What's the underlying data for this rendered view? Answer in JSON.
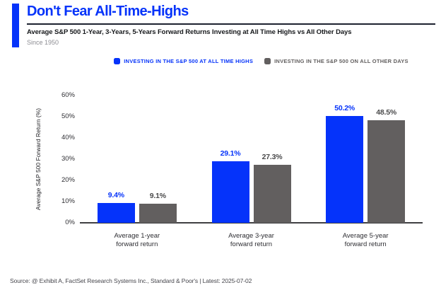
{
  "colors": {
    "accent_blue": "#0533fa",
    "bar_gray": "#625f5f",
    "gray_label": "#4a4a4b"
  },
  "header": {
    "title": "Don't Fear All-Time-Highs",
    "subtitle": "Average S&P 500 1-Year, 3-Years, 5-Years Forward Returns Investing at All Time Highs vs All Other Days",
    "since": "Since 1950"
  },
  "legend": [
    {
      "label": "INVESTING IN THE S&P 500 AT ALL TIME HIGHS",
      "color": "#0533fa"
    },
    {
      "label": "INVESTING IN THE S&P 500 ON ALL OTHER DAYS",
      "color": "#625f5f"
    }
  ],
  "chart_data": {
    "type": "bar",
    "title": "Don't Fear All-Time-Highs",
    "categories": [
      "Average 1-year\nforward return",
      "Average 3-year\nforward return",
      "Average 5-year\nforward return"
    ],
    "series": [
      {
        "name": "Investing in the S&P 500 at all time highs",
        "color": "#0533fa",
        "values": [
          9.4,
          29.1,
          50.2
        ],
        "labels": [
          "9.4%",
          "29.1%",
          "50.2%"
        ]
      },
      {
        "name": "Investing in the S&P 500 on all other days",
        "color": "#625f5f",
        "values": [
          9.1,
          27.3,
          48.5
        ],
        "labels": [
          "9.1%",
          "27.3%",
          "48.5%"
        ]
      }
    ],
    "xlabel": "",
    "ylabel": "Average S&P 500 Forward Return (%)",
    "ylim": [
      0,
      60
    ],
    "yticks": [
      "0%",
      "10%",
      "20%",
      "30%",
      "40%",
      "50%",
      "60%"
    ],
    "grid": false,
    "legend_position": "top"
  },
  "footer": {
    "source": "Source: @ Exhibit A, FactSet Research Systems Inc., Standard & Poor's | Latest: 2025-07-02"
  }
}
